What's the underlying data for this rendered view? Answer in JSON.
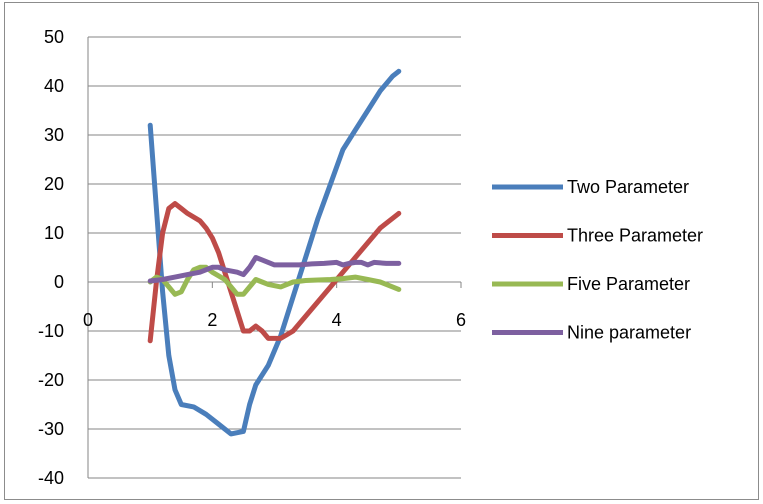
{
  "chart_data": {
    "type": "line",
    "title": "",
    "xlabel": "",
    "ylabel": "",
    "xlim": [
      0,
      6
    ],
    "ylim": [
      -40,
      50
    ],
    "x_ticks": [
      "0",
      "2",
      "4",
      "6"
    ],
    "y_ticks": [
      "50",
      "40",
      "30",
      "20",
      "10",
      "0",
      "-10",
      "-20",
      "-30",
      "-40"
    ],
    "grid": "horizontal",
    "legend_position": "right",
    "series": [
      {
        "name": "Two Parameter",
        "color": "#4a7ebb",
        "points": [
          [
            1.0,
            32
          ],
          [
            1.1,
            15
          ],
          [
            1.2,
            -2
          ],
          [
            1.3,
            -15
          ],
          [
            1.4,
            -22
          ],
          [
            1.5,
            -25
          ],
          [
            1.7,
            -25.5
          ],
          [
            1.9,
            -27
          ],
          [
            2.1,
            -29
          ],
          [
            2.3,
            -31
          ],
          [
            2.5,
            -30.5
          ],
          [
            2.6,
            -25
          ],
          [
            2.7,
            -21
          ],
          [
            2.9,
            -17
          ],
          [
            3.1,
            -11
          ],
          [
            3.3,
            -3
          ],
          [
            3.5,
            5
          ],
          [
            3.7,
            13
          ],
          [
            3.9,
            20
          ],
          [
            4.1,
            27
          ],
          [
            4.3,
            31
          ],
          [
            4.5,
            35
          ],
          [
            4.7,
            39
          ],
          [
            4.9,
            42
          ],
          [
            5.0,
            43
          ]
        ]
      },
      {
        "name": "Three Parameter",
        "color": "#be4b48",
        "points": [
          [
            1.0,
            -12
          ],
          [
            1.1,
            0
          ],
          [
            1.2,
            10
          ],
          [
            1.3,
            15
          ],
          [
            1.4,
            16
          ],
          [
            1.5,
            15
          ],
          [
            1.6,
            14
          ],
          [
            1.8,
            12.5
          ],
          [
            1.9,
            11
          ],
          [
            2.0,
            9
          ],
          [
            2.1,
            6
          ],
          [
            2.2,
            2
          ],
          [
            2.3,
            -2
          ],
          [
            2.4,
            -6
          ],
          [
            2.5,
            -10
          ],
          [
            2.6,
            -10
          ],
          [
            2.7,
            -9
          ],
          [
            2.8,
            -10
          ],
          [
            2.9,
            -11.5
          ],
          [
            3.1,
            -11.5
          ],
          [
            3.3,
            -10
          ],
          [
            3.5,
            -7
          ],
          [
            3.7,
            -4
          ],
          [
            3.9,
            -1
          ],
          [
            4.1,
            2
          ],
          [
            4.3,
            5
          ],
          [
            4.5,
            8
          ],
          [
            4.7,
            11
          ],
          [
            4.9,
            13
          ],
          [
            5.0,
            14
          ]
        ]
      },
      {
        "name": "Five Parameter",
        "color": "#98b954",
        "points": [
          [
            1.0,
            0
          ],
          [
            1.1,
            1
          ],
          [
            1.2,
            0.5
          ],
          [
            1.3,
            -1
          ],
          [
            1.4,
            -2.5
          ],
          [
            1.5,
            -2
          ],
          [
            1.6,
            0.5
          ],
          [
            1.7,
            2.5
          ],
          [
            1.8,
            3
          ],
          [
            1.9,
            3
          ],
          [
            2.0,
            2
          ],
          [
            2.2,
            0.5
          ],
          [
            2.3,
            -1
          ],
          [
            2.4,
            -2.5
          ],
          [
            2.5,
            -2.5
          ],
          [
            2.6,
            -1
          ],
          [
            2.7,
            0.5
          ],
          [
            2.8,
            0
          ],
          [
            2.9,
            -0.5
          ],
          [
            3.1,
            -1
          ],
          [
            3.3,
            0
          ],
          [
            3.5,
            0.3
          ],
          [
            3.7,
            0.4
          ],
          [
            3.9,
            0.5
          ],
          [
            4.1,
            0.7
          ],
          [
            4.3,
            1
          ],
          [
            4.5,
            0.5
          ],
          [
            4.7,
            0
          ],
          [
            4.9,
            -1
          ],
          [
            5.0,
            -1.5
          ]
        ]
      },
      {
        "name": "Nine parameter",
        "color": "#7d60a0",
        "points": [
          [
            1.0,
            0.2
          ],
          [
            1.2,
            0.5
          ],
          [
            1.4,
            1
          ],
          [
            1.6,
            1.5
          ],
          [
            1.8,
            2
          ],
          [
            2.0,
            3
          ],
          [
            2.1,
            3
          ],
          [
            2.2,
            2.5
          ],
          [
            2.4,
            2
          ],
          [
            2.5,
            1.5
          ],
          [
            2.6,
            3
          ],
          [
            2.7,
            5
          ],
          [
            2.8,
            4.5
          ],
          [
            3.0,
            3.5
          ],
          [
            3.2,
            3.5
          ],
          [
            3.4,
            3.5
          ],
          [
            3.6,
            3.7
          ],
          [
            3.8,
            3.8
          ],
          [
            4.0,
            4
          ],
          [
            4.1,
            3.5
          ],
          [
            4.2,
            3.8
          ],
          [
            4.3,
            4
          ],
          [
            4.4,
            4
          ],
          [
            4.5,
            3.5
          ],
          [
            4.6,
            4
          ],
          [
            4.8,
            3.8
          ],
          [
            5.0,
            3.8
          ]
        ]
      }
    ]
  }
}
